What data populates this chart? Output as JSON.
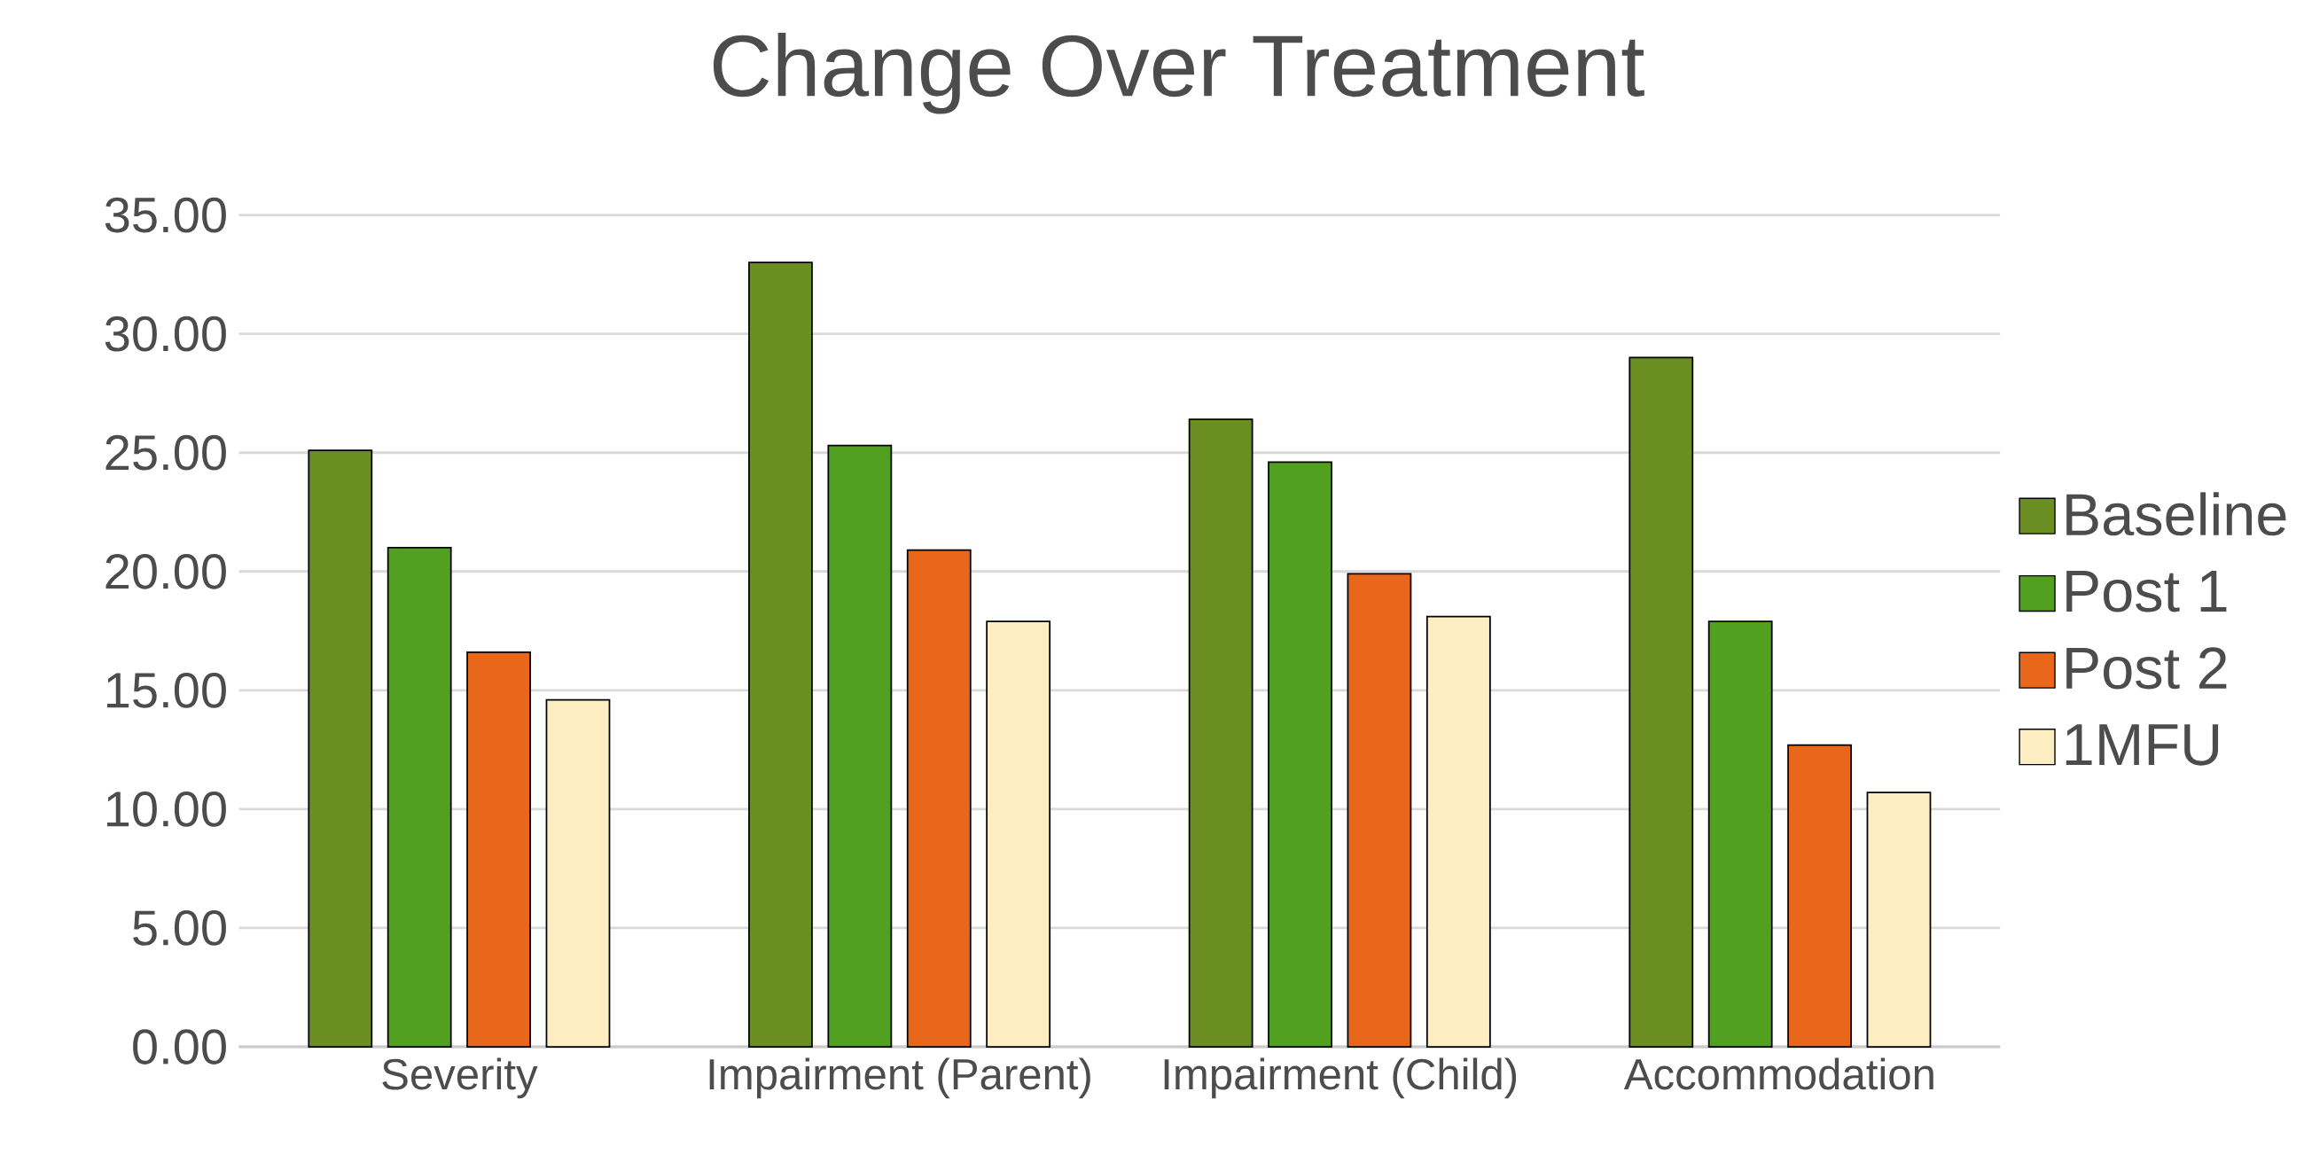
{
  "chart_data": {
    "type": "bar",
    "title": "Change Over Treatment",
    "categories": [
      "Severity",
      "Impairment (Parent)",
      "Impairment (Child)",
      "Accommodation"
    ],
    "series": [
      {
        "name": "Baseline",
        "color": "#6b8e23",
        "values": [
          25.1,
          33.0,
          26.4,
          29.0
        ]
      },
      {
        "name": "Post 1",
        "color": "#52a020",
        "values": [
          21.0,
          25.3,
          24.6,
          17.9
        ]
      },
      {
        "name": "Post 2",
        "color": "#e8671b",
        "values": [
          16.6,
          20.9,
          19.9,
          12.7
        ]
      },
      {
        "name": "1MFU",
        "color": "#feedc0",
        "values": [
          14.6,
          17.9,
          18.1,
          10.7
        ]
      }
    ],
    "ylim": [
      0,
      35
    ],
    "yticks": [
      {
        "value": 0,
        "label": "0.00"
      },
      {
        "value": 5,
        "label": "5.00"
      },
      {
        "value": 10,
        "label": "10.00"
      },
      {
        "value": 15,
        "label": "15.00"
      },
      {
        "value": 20,
        "label": "20.00"
      },
      {
        "value": 25,
        "label": "25.00"
      },
      {
        "value": 30,
        "label": "30.00"
      },
      {
        "value": 35,
        "label": "35.00"
      }
    ],
    "grid": "y",
    "legend": "right"
  }
}
